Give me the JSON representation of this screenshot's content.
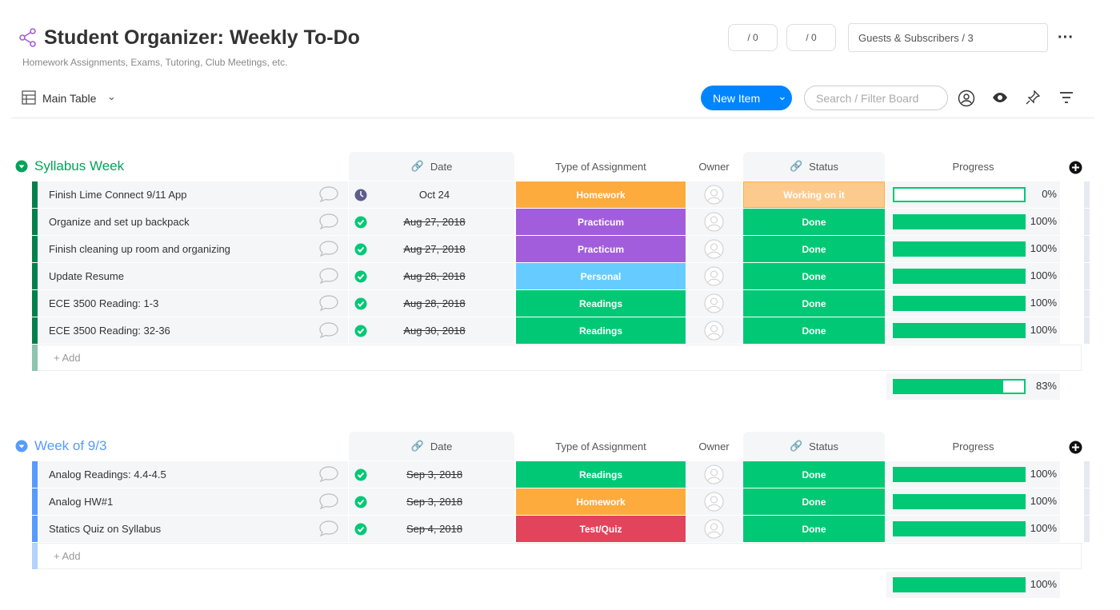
{
  "header": {
    "title": "Student Organizer: Weekly To-Do",
    "description": "Homework Assignments, Exams, Tutoring, Club Meetings, etc.",
    "updates_count": "/ 0",
    "integrations_count": "/ 0",
    "guests": "Guests & Subscribers / 3"
  },
  "toolbar": {
    "view": "Main Table",
    "new_item": "New Item",
    "search_placeholder": "Search / Filter Board"
  },
  "groups": [
    {
      "name": "Syllabus Week",
      "color": "#037f4c",
      "title_color": "#00a359",
      "columns": [
        "Date",
        "Type of Assignment",
        "Owner",
        "Status",
        "Progress"
      ],
      "rows": [
        {
          "name": "Finish Lime Connect 9/11 App",
          "date": "Oct 24",
          "done": false,
          "type": "Homework",
          "type_color": "#fdab3d",
          "status": "Working on it",
          "status_color": "#fdca8e",
          "progress": 0,
          "progress_label": "0%"
        },
        {
          "name": "Organize and set up backpack",
          "date": "Aug 27, 2018",
          "done": true,
          "type": "Practicum",
          "type_color": "#a25ddc",
          "status": "Done",
          "status_color": "#00c875",
          "progress": 100,
          "progress_label": "100%"
        },
        {
          "name": "Finish cleaning up room and organizing",
          "date": "Aug 27, 2018",
          "done": true,
          "type": "Practicum",
          "type_color": "#a25ddc",
          "status": "Done",
          "status_color": "#00c875",
          "progress": 100,
          "progress_label": "100%"
        },
        {
          "name": "Update Resume",
          "date": "Aug 28, 2018",
          "done": true,
          "type": "Personal",
          "type_color": "#66ccff",
          "status": "Done",
          "status_color": "#00c875",
          "progress": 100,
          "progress_label": "100%"
        },
        {
          "name": "ECE 3500 Reading: 1-3",
          "date": "Aug 28, 2018",
          "done": true,
          "type": "Readings",
          "type_color": "#00c875",
          "status": "Done",
          "status_color": "#00c875",
          "progress": 100,
          "progress_label": "100%"
        },
        {
          "name": "ECE 3500 Reading: 32-36",
          "date": "Aug 30, 2018",
          "done": true,
          "type": "Readings",
          "type_color": "#00c875",
          "status": "Done",
          "status_color": "#00c875",
          "progress": 100,
          "progress_label": "100%"
        }
      ],
      "add_label": "+ Add",
      "summary_progress": 83,
      "summary_label": "83%"
    },
    {
      "name": "Week of 9/3",
      "color": "#579bfc",
      "title_color": "#579bfc",
      "columns": [
        "Date",
        "Type of Assignment",
        "Owner",
        "Status",
        "Progress"
      ],
      "rows": [
        {
          "name": "Analog Readings: 4.4-4.5",
          "date": "Sep 3, 2018",
          "done": true,
          "type": "Readings",
          "type_color": "#00c875",
          "status": "Done",
          "status_color": "#00c875",
          "progress": 100,
          "progress_label": "100%"
        },
        {
          "name": "Analog HW#1",
          "date": "Sep 3, 2018",
          "done": true,
          "type": "Homework",
          "type_color": "#fdab3d",
          "status": "Done",
          "status_color": "#00c875",
          "progress": 100,
          "progress_label": "100%"
        },
        {
          "name": "Statics Quiz on Syllabus",
          "date": "Sep 4, 2018",
          "done": true,
          "type": "Test/Quiz",
          "type_color": "#e2445c",
          "status": "Done",
          "status_color": "#00c875",
          "progress": 100,
          "progress_label": "100%"
        }
      ],
      "add_label": "+ Add",
      "summary_progress": 100,
      "summary_label": "100%"
    }
  ]
}
